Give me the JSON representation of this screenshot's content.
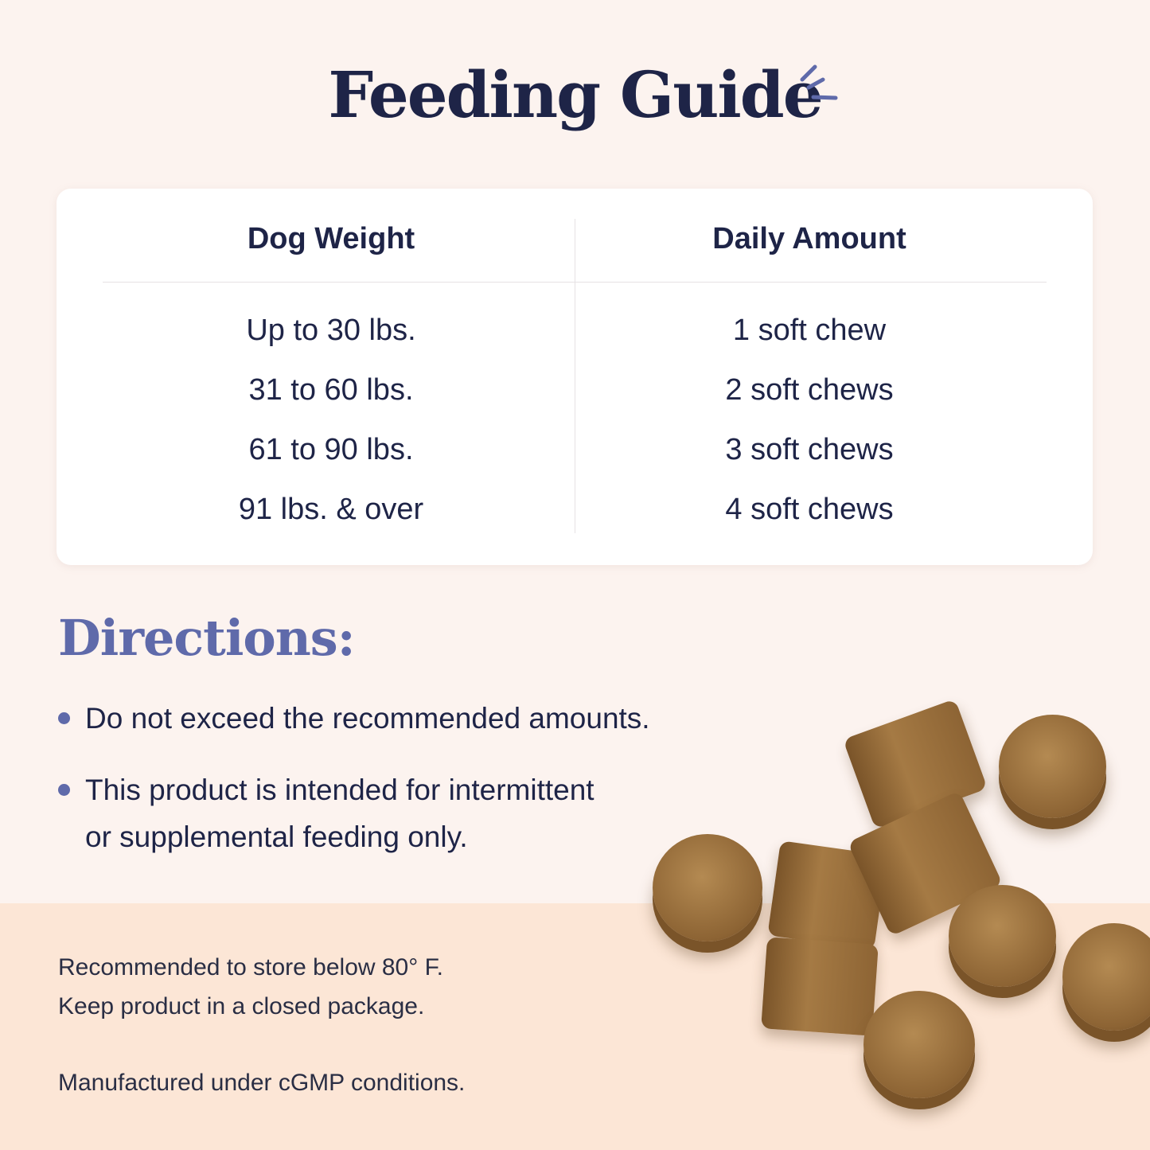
{
  "title": "Feeding Guide",
  "colors": {
    "title": "#1e2447",
    "accent": "#5f6aaa",
    "background": "#fcf3ef",
    "band": "#fce6d6"
  },
  "table": {
    "headers": [
      "Dog Weight",
      "Daily Amount"
    ],
    "rows": [
      [
        "Up to 30 lbs.",
        "1 soft chew"
      ],
      [
        "31 to 60 lbs.",
        "2 soft chews"
      ],
      [
        "61 to 90 lbs.",
        "3 soft chews"
      ],
      [
        "91 lbs. & over",
        "4 soft chews"
      ]
    ]
  },
  "directions": {
    "heading": "Directions:",
    "items": [
      "Do not exceed the recommended amounts.",
      "This product is intended for intermittent",
      "or supplemental feeding only."
    ]
  },
  "footer": {
    "storage_1": "Recommended to store below 80° F.",
    "storage_2": "Keep product in a closed package.",
    "manufacturing": "Manufactured under cGMP conditions."
  }
}
